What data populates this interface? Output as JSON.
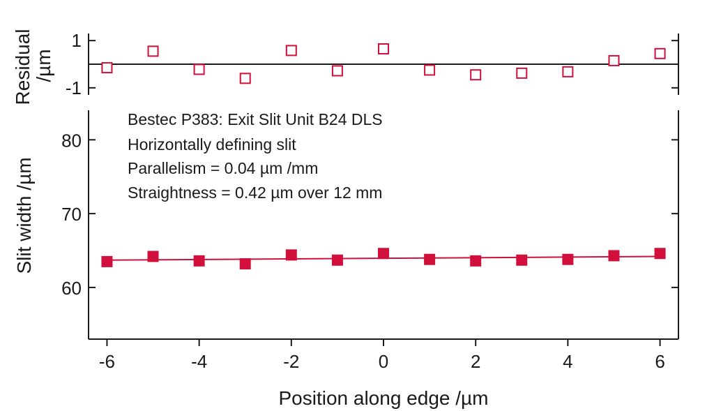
{
  "chart_data": [
    {
      "type": "scatter",
      "panel": "residual",
      "ylabel_lines": [
        "Residual",
        "/µm"
      ],
      "xlim": [
        -6.4,
        6.4
      ],
      "ylim": [
        -1.3,
        1.3
      ],
      "yticks": [
        -1,
        1
      ],
      "ytick_labels": [
        "-1",
        "1"
      ],
      "marker": "open-square",
      "color": "#d0103a",
      "reference_line": 0,
      "series": [
        {
          "x": [
            -6,
            -5,
            -4,
            -3,
            -2,
            -1,
            0,
            1,
            2,
            3,
            4,
            5,
            6
          ],
          "y": [
            -0.15,
            0.55,
            -0.22,
            -0.6,
            0.58,
            -0.28,
            0.65,
            -0.25,
            -0.45,
            -0.38,
            -0.32,
            0.15,
            0.45
          ]
        }
      ]
    },
    {
      "type": "scatter",
      "panel": "main",
      "ylabel": "Slit width /µm",
      "xlabel": "Position along edge /µm",
      "xlim": [
        -6.4,
        6.4
      ],
      "ylim": [
        53,
        84
      ],
      "xticks": [
        -6,
        -4,
        -2,
        0,
        2,
        4,
        6
      ],
      "xtick_labels": [
        "-6",
        "-4",
        "-2",
        "0",
        "2",
        "4",
        "6"
      ],
      "yticks": [
        60,
        70,
        80
      ],
      "ytick_labels": [
        "60",
        "70",
        "80"
      ],
      "marker": "filled-square",
      "color": "#d0103a",
      "annotations": [
        "Bestec P383: Exit Slit Unit B24 DLS",
        "Horizontally defining slit",
        "Parallelism = 0.04 µm /mm",
        "Straightness = 0.42 µm over 12 mm"
      ],
      "series": [
        {
          "x": [
            -6,
            -5,
            -4,
            -3,
            -2,
            -1,
            0,
            1,
            2,
            3,
            4,
            5,
            6
          ],
          "y": [
            63.5,
            64.2,
            63.6,
            63.2,
            64.4,
            63.7,
            64.6,
            63.8,
            63.6,
            63.7,
            63.8,
            64.3,
            64.6
          ]
        }
      ],
      "fit_line": {
        "x": [
          -6,
          6
        ],
        "y": [
          63.7,
          64.2
        ]
      }
    }
  ]
}
